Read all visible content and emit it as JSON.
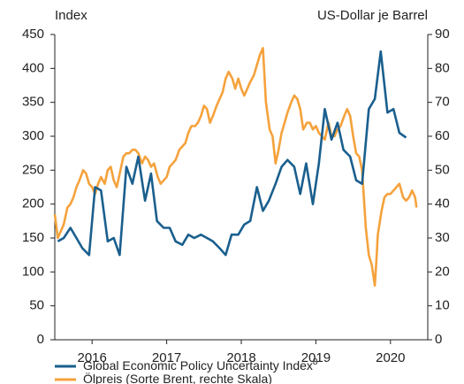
{
  "chart_data": {
    "type": "line",
    "y_label": "Index",
    "y2_label": "US-Dollar je Barrel",
    "xlim": [
      2016,
      2021
    ],
    "xticks": [
      {
        "value": 2016.5,
        "label": "2016"
      },
      {
        "value": 2017.5,
        "label": "2017"
      },
      {
        "value": 2018.5,
        "label": "2018"
      },
      {
        "value": 2019.5,
        "label": "2019"
      },
      {
        "value": 2020.5,
        "label": "2020"
      }
    ],
    "ylim": [
      0,
      450
    ],
    "yticks": [
      0,
      50,
      100,
      150,
      200,
      250,
      300,
      350,
      400,
      450
    ],
    "y2lim": [
      0,
      90
    ],
    "y2ticks": [
      0,
      10,
      20,
      30,
      40,
      50,
      60,
      70,
      80,
      90
    ],
    "series": [
      {
        "name": "Global Economic Policy Uncertainty Index",
        "footnote_mark": "8",
        "color": "#1a5f8e",
        "axis": "y",
        "x": [
          2016.04,
          2016.12,
          2016.21,
          2016.29,
          2016.37,
          2016.46,
          2016.54,
          2016.62,
          2016.71,
          2016.79,
          2016.87,
          2016.96,
          2017.04,
          2017.12,
          2017.21,
          2017.29,
          2017.37,
          2017.46,
          2017.54,
          2017.62,
          2017.71,
          2017.79,
          2017.87,
          2017.96,
          2018.04,
          2018.12,
          2018.21,
          2018.29,
          2018.37,
          2018.46,
          2018.54,
          2018.62,
          2018.71,
          2018.79,
          2018.87,
          2018.96,
          2019.04,
          2019.12,
          2019.21,
          2019.29,
          2019.37,
          2019.46,
          2019.54,
          2019.62,
          2019.71,
          2019.79,
          2019.87,
          2019.96,
          2020.04,
          2020.12,
          2020.21,
          2020.29,
          2020.37,
          2020.46,
          2020.54,
          2020.62,
          2020.71
        ],
        "values": [
          145,
          150,
          165,
          150,
          135,
          125,
          225,
          220,
          145,
          150,
          125,
          255,
          230,
          270,
          205,
          245,
          175,
          165,
          165,
          145,
          140,
          155,
          150,
          155,
          150,
          145,
          135,
          125,
          155,
          155,
          170,
          175,
          225,
          190,
          205,
          230,
          255,
          265,
          255,
          215,
          260,
          200,
          260,
          340,
          295,
          320,
          280,
          270,
          235,
          230,
          340,
          355,
          425,
          335,
          340,
          305,
          298
        ]
      },
      {
        "name": "Ölpreis (Sorte Brent, rechte Skala)",
        "color": "#f5a23c",
        "axis": "y2",
        "x": [
          2016.0,
          2016.04,
          2016.08,
          2016.12,
          2016.17,
          2016.21,
          2016.25,
          2016.29,
          2016.33,
          2016.38,
          2016.42,
          2016.46,
          2016.5,
          2016.54,
          2016.58,
          2016.62,
          2016.67,
          2016.71,
          2016.75,
          2016.79,
          2016.83,
          2016.88,
          2016.92,
          2016.96,
          2017.0,
          2017.04,
          2017.08,
          2017.12,
          2017.17,
          2017.21,
          2017.25,
          2017.29,
          2017.33,
          2017.38,
          2017.42,
          2017.46,
          2017.5,
          2017.54,
          2017.58,
          2017.62,
          2017.67,
          2017.71,
          2017.75,
          2017.79,
          2017.83,
          2017.88,
          2017.92,
          2017.96,
          2018.0,
          2018.04,
          2018.08,
          2018.12,
          2018.17,
          2018.21,
          2018.25,
          2018.29,
          2018.33,
          2018.38,
          2018.42,
          2018.46,
          2018.5,
          2018.54,
          2018.58,
          2018.62,
          2018.67,
          2018.71,
          2018.75,
          2018.79,
          2018.83,
          2018.88,
          2018.92,
          2018.96,
          2019.0,
          2019.04,
          2019.08,
          2019.12,
          2019.17,
          2019.21,
          2019.25,
          2019.29,
          2019.33,
          2019.38,
          2019.42,
          2019.46,
          2019.5,
          2019.54,
          2019.58,
          2019.62,
          2019.67,
          2019.71,
          2019.75,
          2019.79,
          2019.83,
          2019.88,
          2019.92,
          2019.96,
          2020.0,
          2020.04,
          2020.08,
          2020.12,
          2020.17,
          2020.21,
          2020.25,
          2020.29,
          2020.31,
          2020.33,
          2020.38,
          2020.42,
          2020.46,
          2020.5,
          2020.54,
          2020.58,
          2020.62,
          2020.67,
          2020.71,
          2020.75,
          2020.79,
          2020.83,
          2020.85
        ],
        "values": [
          37,
          30,
          32,
          34,
          39,
          40,
          42,
          45,
          47,
          50,
          49,
          46,
          45,
          43,
          46,
          48,
          46,
          50,
          51,
          47,
          45,
          50,
          54,
          55,
          55,
          56,
          56,
          55,
          52,
          54,
          53,
          51,
          52,
          48,
          46,
          47,
          48,
          51,
          52,
          53,
          56,
          57,
          58,
          61,
          63,
          63,
          64,
          66,
          69,
          68,
          64,
          66,
          69,
          71,
          73,
          77,
          79,
          77,
          74,
          77,
          74,
          72,
          74,
          76,
          78,
          81,
          84,
          86,
          70,
          62,
          60,
          52,
          56,
          61,
          64,
          67,
          70,
          72,
          71,
          68,
          62,
          64,
          64,
          62,
          63,
          61,
          60,
          59,
          64,
          60,
          60,
          62,
          63,
          66,
          68,
          66,
          60,
          55,
          54,
          50,
          33,
          25,
          22,
          16,
          23,
          31,
          38,
          42,
          43,
          43,
          44,
          45,
          46,
          42,
          41,
          42,
          44,
          42,
          39
        ]
      }
    ]
  }
}
